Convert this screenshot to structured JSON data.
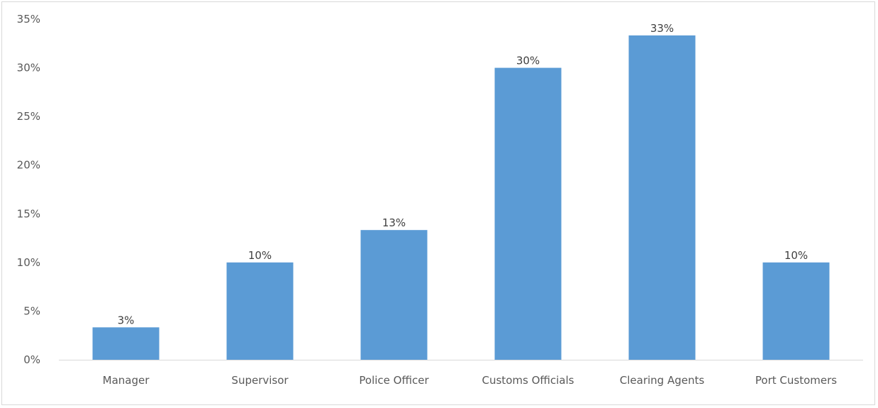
{
  "chart_data": {
    "type": "bar",
    "categories": [
      "Manager",
      "Supervisor",
      "Police Officer",
      "Customs Officials",
      "Clearing Agents",
      "Port Customers"
    ],
    "values": [
      3.33,
      10,
      13.33,
      30,
      33.33,
      10
    ],
    "data_labels": [
      "3%",
      "10%",
      "13%",
      "30%",
      "33%",
      "10%"
    ],
    "y_ticks": [
      "0%",
      "5%",
      "10%",
      "15%",
      "20%",
      "25%",
      "30%",
      "35%"
    ],
    "y_tick_values": [
      0,
      5,
      10,
      15,
      20,
      25,
      30,
      35
    ],
    "ylim": [
      0,
      35
    ],
    "title": "",
    "xlabel": "",
    "ylabel": "",
    "grid": false,
    "legend": "none",
    "colors": {
      "bar": "#5b9bd5",
      "axis": "#d9d9d9",
      "text": "#595959"
    }
  }
}
